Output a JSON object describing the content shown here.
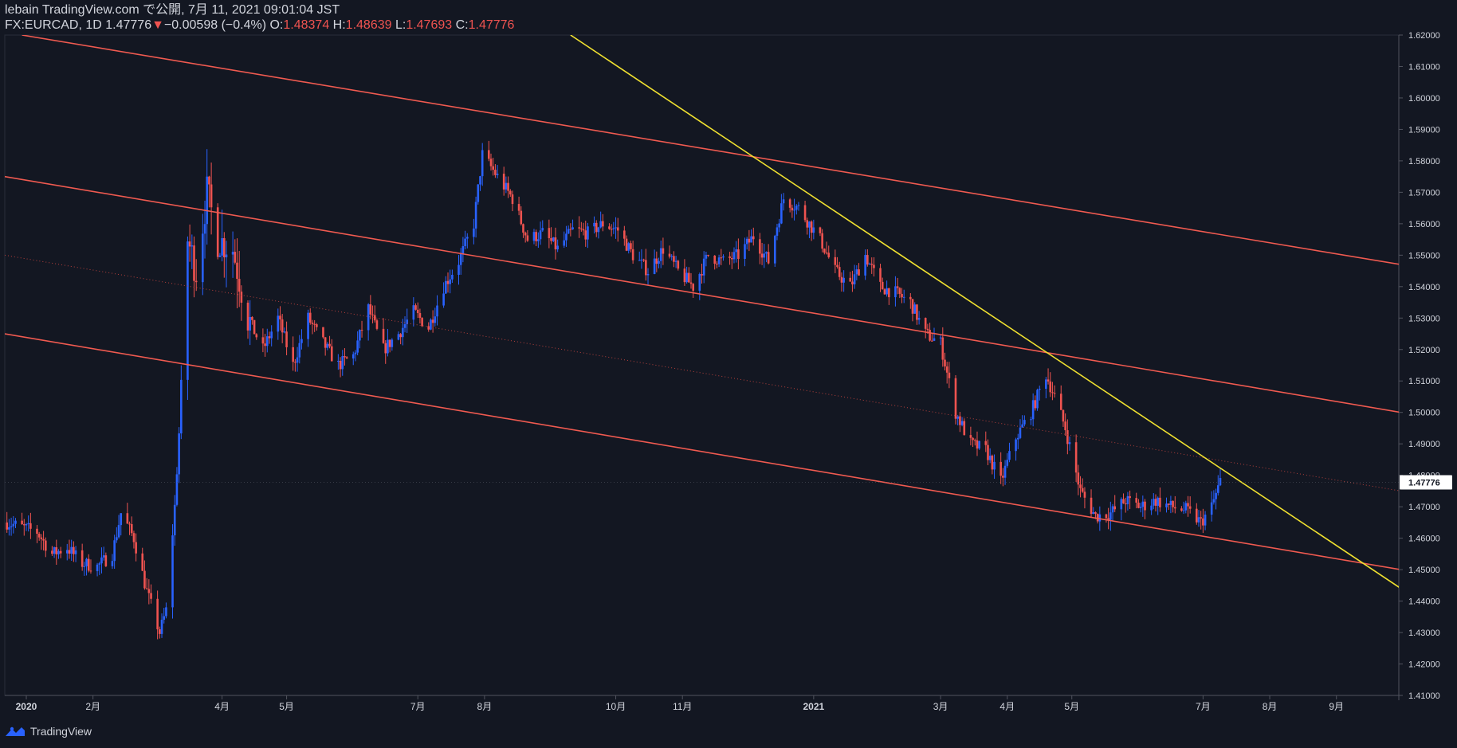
{
  "header": {
    "published": "lebain TradingView.com で公開, 7月 11, 2021 09:01:04 JST",
    "symbol": "FX:EURCAD, 1D",
    "last": "1.47776",
    "change_arrow": "▼",
    "change": "−0.00598 (−0.4%)",
    "open_label": "O:",
    "open": "1.48374",
    "high_label": "H:",
    "high": "1.48639",
    "low_label": "L:",
    "low": "1.47693",
    "close_label": "C:",
    "close": "1.47776"
  },
  "footer": {
    "brand": "TradingView",
    "logo_icon": "tradingview-logo-icon"
  },
  "colors": {
    "background": "#131722",
    "up": "#2962ff",
    "down": "#ef5350",
    "channel": "#f05a50",
    "trend": "#f0e130",
    "text": "#d1d4dc",
    "price_label_bg": "#ffffff"
  },
  "chart_data": {
    "type": "candlestick",
    "title": "FX:EURCAD, 1D",
    "xlabel": "",
    "ylabel": "",
    "ylim": [
      1.41,
      1.62
    ],
    "xlim": [
      "2019-12-22",
      "2021-09-30"
    ],
    "grid": false,
    "last_price_label": "1.47776",
    "yticks": [
      1.41,
      1.42,
      1.43,
      1.44,
      1.45,
      1.46,
      1.47,
      1.48,
      1.49,
      1.5,
      1.51,
      1.52,
      1.53,
      1.54,
      1.55,
      1.56,
      1.57,
      1.58,
      1.59,
      1.6,
      1.61,
      1.62
    ],
    "ytick_labels": [
      "1.41000",
      "1.42000",
      "1.43000",
      "1.44000",
      "1.45000",
      "1.46000",
      "1.47000",
      "1.48000",
      "1.49000",
      "1.50000",
      "1.51000",
      "1.52000",
      "1.53000",
      "1.54000",
      "1.55000",
      "1.56000",
      "1.57000",
      "1.58000",
      "1.59000",
      "1.60000",
      "1.61000",
      "1.62000"
    ],
    "xticks": [
      {
        "date": "2020-01-01",
        "label": "2020",
        "bold": true
      },
      {
        "date": "2020-02-01",
        "label": "2月"
      },
      {
        "date": "2020-04-01",
        "label": "4月"
      },
      {
        "date": "2020-05-01",
        "label": "5月"
      },
      {
        "date": "2020-07-01",
        "label": "7月"
      },
      {
        "date": "2020-08-01",
        "label": "8月"
      },
      {
        "date": "2020-10-01",
        "label": "10月"
      },
      {
        "date": "2020-11-01",
        "label": "11月"
      },
      {
        "date": "2021-01-01",
        "label": "2021",
        "bold": true
      },
      {
        "date": "2021-03-01",
        "label": "3月"
      },
      {
        "date": "2021-04-01",
        "label": "4月"
      },
      {
        "date": "2021-05-01",
        "label": "5月"
      },
      {
        "date": "2021-07-01",
        "label": "7月"
      },
      {
        "date": "2021-08-01",
        "label": "8月"
      },
      {
        "date": "2021-09-01",
        "label": "9月"
      }
    ],
    "price_path": [
      [
        "2019-12-23",
        1.465
      ],
      [
        "2020-01-06",
        1.462
      ],
      [
        "2020-01-13",
        1.455
      ],
      [
        "2020-01-20",
        1.457
      ],
      [
        "2020-01-27",
        1.452
      ],
      [
        "2020-02-03",
        1.451
      ],
      [
        "2020-02-10",
        1.455
      ],
      [
        "2020-02-14",
        1.468
      ],
      [
        "2020-02-20",
        1.46
      ],
      [
        "2020-02-26",
        1.443
      ],
      [
        "2020-03-03",
        1.43
      ],
      [
        "2020-03-06",
        1.437
      ],
      [
        "2020-03-10",
        1.47
      ],
      [
        "2020-03-13",
        1.505
      ],
      [
        "2020-03-16",
        1.555
      ],
      [
        "2020-03-20",
        1.545
      ],
      [
        "2020-03-25",
        1.57
      ],
      [
        "2020-03-30",
        1.555
      ],
      [
        "2020-04-06",
        1.552
      ],
      [
        "2020-04-13",
        1.53
      ],
      [
        "2020-04-20",
        1.52
      ],
      [
        "2020-04-27",
        1.53
      ],
      [
        "2020-05-04",
        1.515
      ],
      [
        "2020-05-11",
        1.53
      ],
      [
        "2020-05-18",
        1.522
      ],
      [
        "2020-05-25",
        1.515
      ],
      [
        "2020-06-01",
        1.518
      ],
      [
        "2020-06-08",
        1.533
      ],
      [
        "2020-06-15",
        1.52
      ],
      [
        "2020-06-22",
        1.525
      ],
      [
        "2020-06-29",
        1.532
      ],
      [
        "2020-07-06",
        1.527
      ],
      [
        "2020-07-13",
        1.54
      ],
      [
        "2020-07-20",
        1.548
      ],
      [
        "2020-07-27",
        1.56
      ],
      [
        "2020-07-31",
        1.582
      ],
      [
        "2020-08-07",
        1.575
      ],
      [
        "2020-08-14",
        1.568
      ],
      [
        "2020-08-21",
        1.555
      ],
      [
        "2020-08-28",
        1.557
      ],
      [
        "2020-09-04",
        1.552
      ],
      [
        "2020-09-11",
        1.558
      ],
      [
        "2020-09-18",
        1.557
      ],
      [
        "2020-09-25",
        1.56
      ],
      [
        "2020-10-02",
        1.558
      ],
      [
        "2020-10-09",
        1.55
      ],
      [
        "2020-10-16",
        1.545
      ],
      [
        "2020-10-23",
        1.552
      ],
      [
        "2020-10-30",
        1.545
      ],
      [
        "2020-11-06",
        1.54
      ],
      [
        "2020-11-13",
        1.55
      ],
      [
        "2020-11-20",
        1.548
      ],
      [
        "2020-11-27",
        1.55
      ],
      [
        "2020-12-04",
        1.556
      ],
      [
        "2020-12-11",
        1.548
      ],
      [
        "2020-12-18",
        1.568
      ],
      [
        "2020-12-25",
        1.565
      ],
      [
        "2021-01-04",
        1.555
      ],
      [
        "2021-01-11",
        1.545
      ],
      [
        "2021-01-18",
        1.54
      ],
      [
        "2021-01-25",
        1.55
      ],
      [
        "2021-02-01",
        1.54
      ],
      [
        "2021-02-08",
        1.538
      ],
      [
        "2021-02-15",
        1.535
      ],
      [
        "2021-02-22",
        1.525
      ],
      [
        "2021-03-01",
        1.522
      ],
      [
        "2021-03-08",
        1.5
      ],
      [
        "2021-03-15",
        1.49
      ],
      [
        "2021-03-22",
        1.488
      ],
      [
        "2021-03-29",
        1.478
      ],
      [
        "2021-04-05",
        1.492
      ],
      [
        "2021-04-12",
        1.5
      ],
      [
        "2021-04-19",
        1.512
      ],
      [
        "2021-04-23",
        1.505
      ],
      [
        "2021-04-28",
        1.495
      ],
      [
        "2021-05-05",
        1.475
      ],
      [
        "2021-05-12",
        1.467
      ],
      [
        "2021-05-19",
        1.468
      ],
      [
        "2021-05-26",
        1.472
      ],
      [
        "2021-06-02",
        1.47
      ],
      [
        "2021-06-09",
        1.472
      ],
      [
        "2021-06-16",
        1.47
      ],
      [
        "2021-06-23",
        1.469
      ],
      [
        "2021-06-30",
        1.465
      ],
      [
        "2021-07-05",
        1.47
      ],
      [
        "2021-07-09",
        1.478
      ]
    ],
    "drawings": [
      {
        "name": "channel-upper",
        "color": "#f05a50",
        "from": [
          "2019-12-30",
          1.62
        ],
        "to": [
          "2021-10-01",
          1.547
        ]
      },
      {
        "name": "channel-middle",
        "color": "#f05a50",
        "from": [
          "2019-12-22",
          1.575
        ],
        "to": [
          "2021-10-01",
          1.5
        ]
      },
      {
        "name": "channel-lower",
        "color": "#f05a50",
        "from": [
          "2019-12-22",
          1.525
        ],
        "to": [
          "2021-10-01",
          1.45
        ]
      },
      {
        "name": "channel-median",
        "color": "#b5403c",
        "dotted": true,
        "from": [
          "2019-12-22",
          1.55
        ],
        "to": [
          "2021-10-01",
          1.475
        ]
      },
      {
        "name": "trend-line",
        "color": "#f0e130",
        "from": [
          "2020-09-10",
          1.62
        ],
        "to": [
          "2021-10-01",
          1.444
        ]
      }
    ]
  }
}
